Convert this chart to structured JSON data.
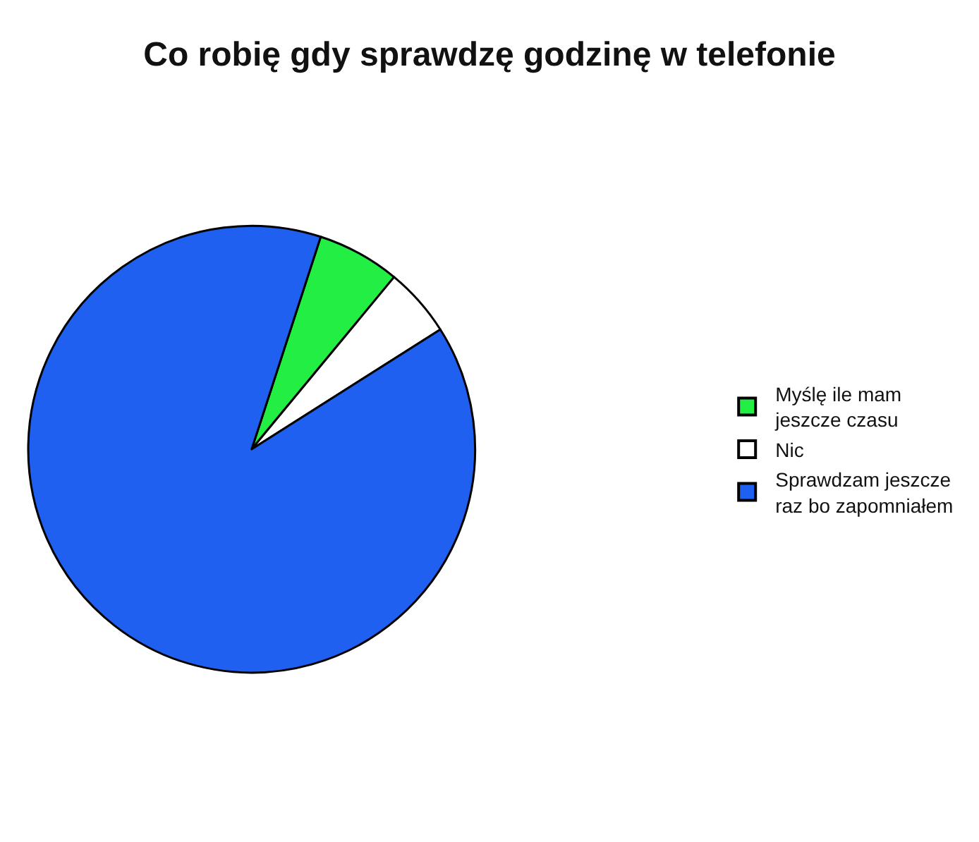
{
  "chart_data": {
    "type": "pie",
    "title": "Co robię gdy sprawdzę godzinę w telefonie",
    "categories": [
      "Myślę ile mam\njeszcze czasu",
      "Nic",
      "Sprawdzam jeszcze\nraz bo zapomniałem"
    ],
    "values": [
      6,
      5,
      89
    ],
    "colors": [
      "#22ee44",
      "#ffffff",
      "#2060f0"
    ],
    "legend": "right"
  }
}
